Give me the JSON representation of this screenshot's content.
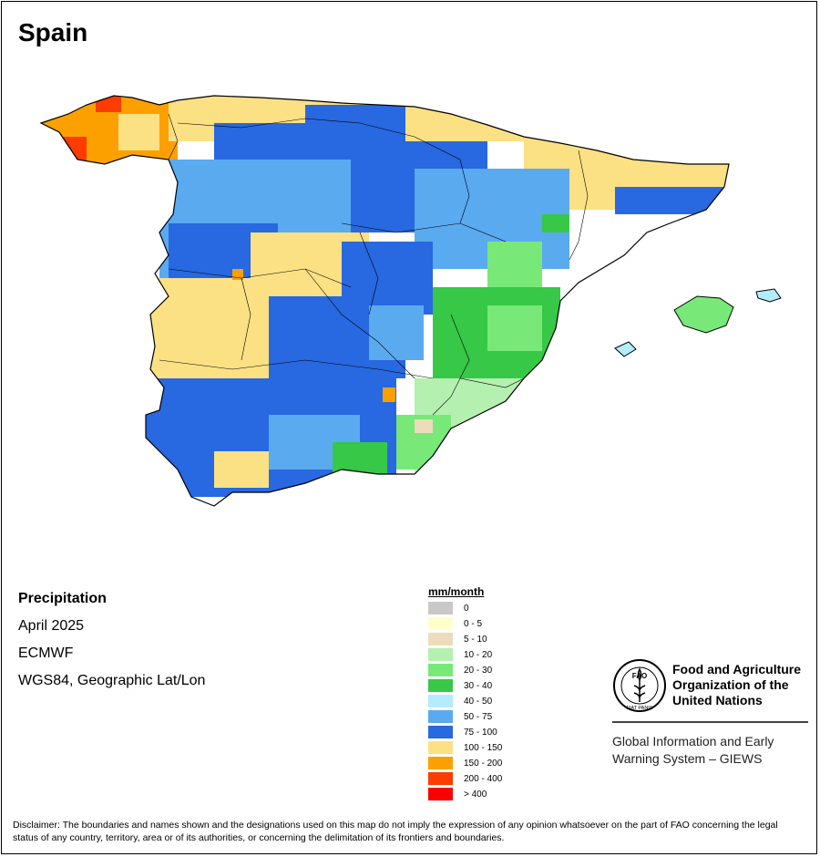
{
  "title": "Spain",
  "info": {
    "variable": "Precipitation",
    "period": "April 2025",
    "source": "ECMWF",
    "projection": "WGS84, Geographic Lat/Lon"
  },
  "legend": {
    "title": "mm/month",
    "classes": [
      {
        "label": "0",
        "color": "#c8c8c8"
      },
      {
        "label": "0 - 5",
        "color": "#ffffcc"
      },
      {
        "label": "5 - 10",
        "color": "#ecdcbc"
      },
      {
        "label": "10 - 20",
        "color": "#b4f0b0"
      },
      {
        "label": "20 - 30",
        "color": "#78e878"
      },
      {
        "label": "30 - 40",
        "color": "#36c846"
      },
      {
        "label": "40 - 50",
        "color": "#b4ecfc"
      },
      {
        "label": "50 - 75",
        "color": "#5aaaf0"
      },
      {
        "label": "75 - 100",
        "color": "#2868e0"
      },
      {
        "label": "100 - 150",
        "color": "#fce084"
      },
      {
        "label": "150 - 200",
        "color": "#fca000"
      },
      {
        "label": "200 - 400",
        "color": "#fc3c00"
      },
      {
        "label": "> 400",
        "color": "#fc0000"
      }
    ]
  },
  "organization": {
    "name_line1": "Food and Agriculture",
    "name_line2": "Organization of the",
    "name_line3": "United Nations",
    "logo_text": "FAO",
    "logo_motto": "FIAT PANIS",
    "system_line1": "Global Information and Early",
    "system_line2": "Warning System – GIEWS"
  },
  "disclaimer": "Disclaimer: The boundaries and names shown and the designations used on this map do not imply the expression of any opinion whatsoever on the part of FAO concerning the legal status of any country, territory, area or of its authorities, or concerning the delimitation of its frontiers and boundaries."
}
